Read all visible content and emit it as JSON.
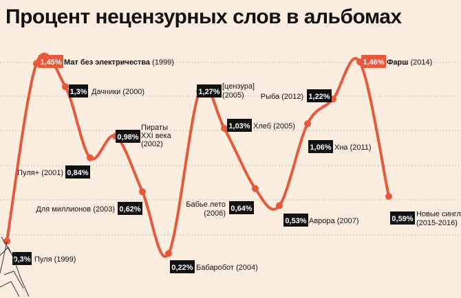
{
  "title": "Процент нецензурных слов в альбомах",
  "chart_data": {
    "type": "line",
    "title": "Процент нецензурных слов в альбомах",
    "ylim": [
      0.15,
      1.55
    ],
    "grid": true,
    "color": "#e8583a",
    "points": [
      {
        "value": 0.3,
        "pct": "0,3%",
        "name": "Пуля",
        "year": "(1999)",
        "highlight": false
      },
      {
        "value": 1.45,
        "pct": "1,45%",
        "name": "Мат без электричества",
        "year": "(1999)",
        "highlight": true
      },
      {
        "value": 1.3,
        "pct": "1,3%",
        "name": "Дачники",
        "year": "(2000)",
        "highlight": false
      },
      {
        "value": 0.84,
        "pct": "0,84%",
        "name": "Пуля+",
        "year": "(2001)",
        "highlight": false
      },
      {
        "value": 0.98,
        "pct": "0,98%",
        "name": "Пираты XXI века",
        "year": "(2002)",
        "highlight": false
      },
      {
        "value": 0.62,
        "pct": "0,62%",
        "name": "Для миллионов",
        "year": "(2003)",
        "highlight": false
      },
      {
        "value": 0.22,
        "pct": "0,22%",
        "name": "Бабаробот",
        "year": "(2004)",
        "highlight": false
      },
      {
        "value": 1.27,
        "pct": "1,27%",
        "name": "[цензура]",
        "year": "(2005)",
        "highlight": false
      },
      {
        "value": 1.03,
        "pct": "1,03%",
        "name": "Хлеб",
        "year": "(2005)",
        "highlight": false
      },
      {
        "value": 0.64,
        "pct": "0,64%",
        "name": "Бабье лето",
        "year": "(2006)",
        "highlight": false
      },
      {
        "value": 0.53,
        "pct": "0,53%",
        "name": "Аврора",
        "year": "(2007)",
        "highlight": false
      },
      {
        "value": 1.06,
        "pct": "1,06%",
        "name": "Хна",
        "year": "(2011)",
        "highlight": false
      },
      {
        "value": 1.22,
        "pct": "1,22%",
        "name": "Рыба",
        "year": "(2012)",
        "highlight": false
      },
      {
        "value": 1.46,
        "pct": "1,46%",
        "name": "Фарш",
        "year": "(2014)",
        "highlight": true
      },
      {
        "value": 0.59,
        "pct": "0,59%",
        "name": "Новые синглы",
        "year": "(2015-2016)",
        "highlight": false
      }
    ]
  }
}
